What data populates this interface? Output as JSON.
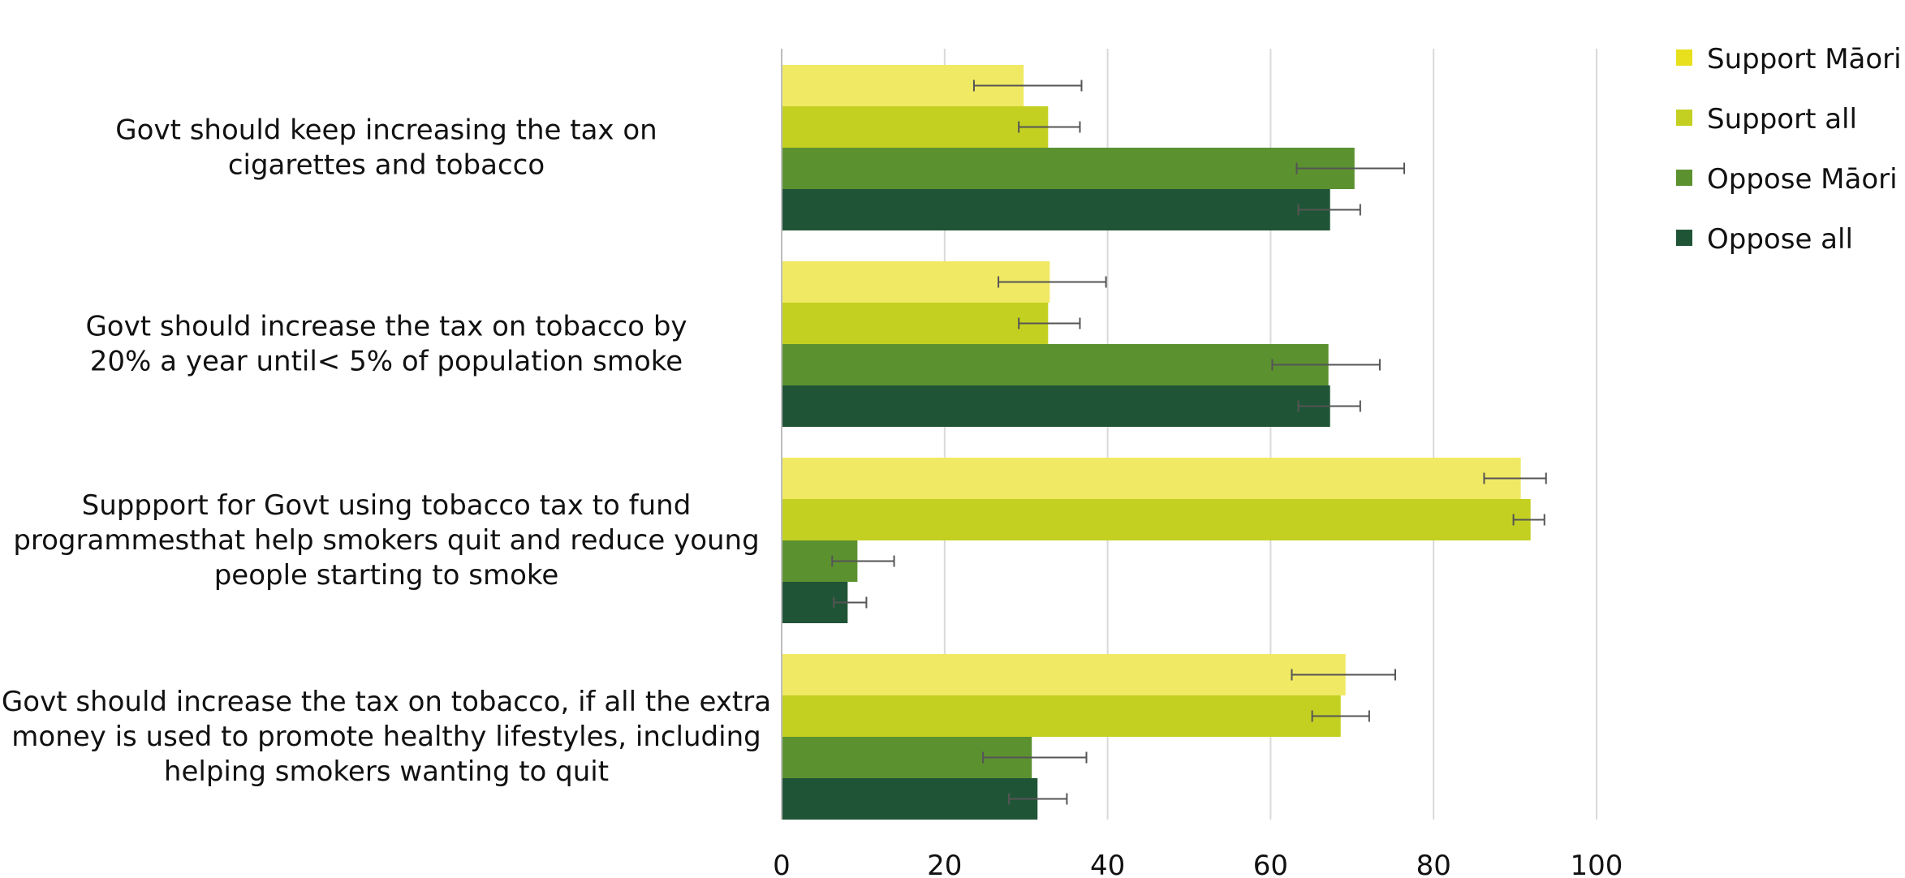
{
  "chart_data": {
    "type": "bar",
    "orientation": "horizontal",
    "categories": [
      [
        "Govt should keep increasing the tax on",
        "cigarettes and tobacco"
      ],
      [
        "Govt should increase the tax on tobacco by",
        "20% a year until< 5% of  population smoke"
      ],
      [
        "Suppport for Govt using tobacco tax to fund",
        "programmesthat help smokers quit and reduce young",
        "people starting to smoke"
      ],
      [
        "Govt should increase the tax on tobacco, if all the extra",
        "money is used to promote healthy lifestyles, including",
        "helping smokers wanting to quit"
      ]
    ],
    "series": [
      {
        "name": "Support Māori",
        "color": "#f0e964",
        "legend_color": "#e8e01c",
        "values": [
          29.7,
          32.9,
          90.7,
          69.2
        ],
        "error_low": [
          23.6,
          26.6,
          86.2,
          62.6
        ],
        "error_high": [
          36.8,
          39.8,
          93.8,
          75.3
        ]
      },
      {
        "name": "Support all",
        "color": "#c3d021",
        "legend_color": "#c3d021",
        "values": [
          32.7,
          32.7,
          91.9,
          68.6
        ],
        "error_low": [
          29.1,
          29.1,
          89.8,
          65.1
        ],
        "error_high": [
          36.6,
          36.6,
          93.6,
          72.1
        ]
      },
      {
        "name": "Oppose Māori",
        "color": "#5c9130",
        "legend_color": "#5c9130",
        "values": [
          70.3,
          67.1,
          9.3,
          30.7
        ],
        "error_low": [
          63.2,
          60.2,
          6.2,
          24.7
        ],
        "error_high": [
          76.4,
          73.4,
          13.8,
          37.4
        ]
      },
      {
        "name": "Oppose all",
        "color": "#205436",
        "legend_color": "#205436",
        "values": [
          67.3,
          67.3,
          8.1,
          31.4
        ],
        "error_low": [
          63.4,
          63.4,
          6.4,
          27.9
        ],
        "error_high": [
          71.0,
          71.0,
          10.4,
          35.0
        ]
      }
    ],
    "xlim": [
      0,
      100
    ],
    "xticks": [
      "0",
      "20",
      "40",
      "60",
      "80",
      "100"
    ],
    "grid": true,
    "legend_position": "top-right",
    "error_bar_color": "#555555"
  }
}
